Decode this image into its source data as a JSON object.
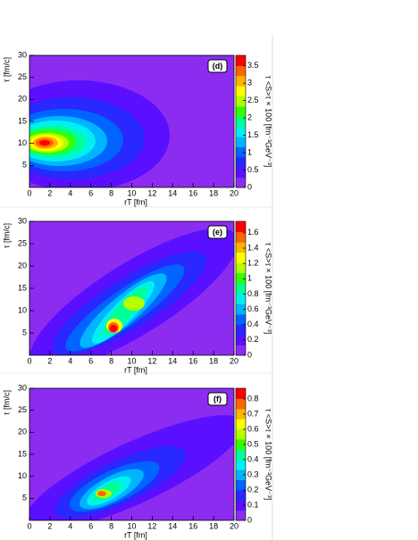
{
  "chart_data": [
    {
      "type": "contour",
      "panel_label": "(d)",
      "x_label": "rT [fm]",
      "y_label": "τ [fm/c]",
      "z_label": "τ <S>τ × 100 [fm⁻³GeV⁻³]",
      "xlim": [
        0,
        20
      ],
      "xticks": [
        0,
        2,
        4,
        6,
        8,
        10,
        12,
        14,
        16,
        18,
        20
      ],
      "ylim": [
        0,
        30
      ],
      "yticks": [
        5,
        10,
        15,
        20,
        25,
        30
      ],
      "zlim": [
        0,
        3.8
      ],
      "zticks": [
        0,
        0.5,
        1,
        1.5,
        2,
        2.5,
        3,
        3.5
      ],
      "palette": [
        "#8c2cf0",
        "#5a10ff",
        "#2828ff",
        "#0064ff",
        "#00b4ff",
        "#00f0f0",
        "#00ff96",
        "#32ff00",
        "#b4ff00",
        "#ffff00",
        "#ffb400",
        "#ff6400",
        "#ff0000"
      ]
    },
    {
      "type": "contour",
      "panel_label": "(e)",
      "x_label": "rT [fm]",
      "y_label": "τ [fm/c]",
      "z_label": "τ <S>τ × 100 [fm⁻³GeV⁻³]",
      "xlim": [
        0,
        20
      ],
      "xticks": [
        0,
        2,
        4,
        6,
        8,
        10,
        12,
        14,
        16,
        18,
        20
      ],
      "ylim": [
        0,
        30
      ],
      "yticks": [
        5,
        10,
        15,
        20,
        25,
        30
      ],
      "zlim": [
        0,
        1.75
      ],
      "zticks": [
        0,
        0.2,
        0.4,
        0.6,
        0.8,
        1,
        1.2,
        1.4,
        1.6
      ],
      "palette": [
        "#8c2cf0",
        "#5a10ff",
        "#2828ff",
        "#0064ff",
        "#00b4ff",
        "#00f0f0",
        "#00ff96",
        "#32ff00",
        "#b4ff00",
        "#ffff00",
        "#ffb400",
        "#ff6400",
        "#ff0000"
      ]
    },
    {
      "type": "contour",
      "panel_label": "(f)",
      "x_label": "rT [fm]",
      "y_label": "τ [fm/c]",
      "z_label": "τ <S>τ × 100 [fm⁻³GeV⁻³]",
      "xlim": [
        0,
        20
      ],
      "xticks": [
        0,
        2,
        4,
        6,
        8,
        10,
        12,
        14,
        16,
        18,
        20
      ],
      "ylim": [
        0,
        30
      ],
      "yticks": [
        5,
        10,
        15,
        20,
        25,
        30
      ],
      "zlim": [
        0,
        0.87
      ],
      "zticks": [
        0,
        0.1,
        0.2,
        0.3,
        0.4,
        0.5,
        0.6,
        0.7,
        0.8
      ],
      "palette": [
        "#8c2cf0",
        "#5a10ff",
        "#2828ff",
        "#0064ff",
        "#00b4ff",
        "#00f0f0",
        "#00ff96",
        "#32ff00",
        "#b4ff00",
        "#ffff00",
        "#ffb400",
        "#ff6400",
        "#ff0000"
      ]
    }
  ]
}
